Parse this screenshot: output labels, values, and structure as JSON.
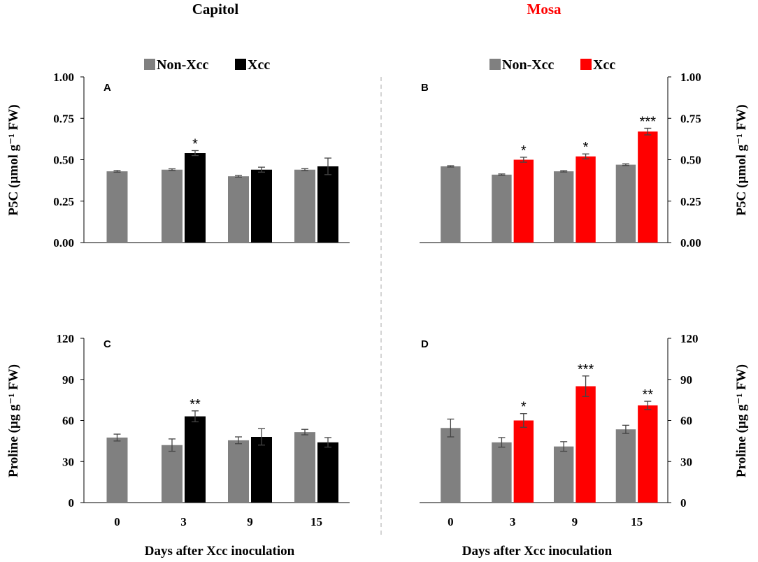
{
  "colors": {
    "non_xcc": "#808080",
    "capitol_xcc": "#000000",
    "mosa_xcc": "#ff0000",
    "mosa_title": "#ff0000",
    "capitol_title": "#000000",
    "axis": "#000000",
    "error_bar": "#444444",
    "divider": "#aaaaaa"
  },
  "chart_data": [
    {
      "id": "A",
      "type": "bar",
      "panel_label": "A",
      "title": "Capitol",
      "ylabel": "P5C (µmol g⁻¹ FW)",
      "xlabel": "",
      "ylim": [
        0,
        1.0
      ],
      "yticks": [
        "0.00",
        "0.25",
        "0.50",
        "0.75",
        "1.00"
      ],
      "ytick_values": [
        0,
        0.25,
        0.5,
        0.75,
        1.0
      ],
      "categories": [
        "0",
        "3",
        "9",
        "15"
      ],
      "legend": [
        "Non-Xcc",
        "Xcc"
      ],
      "series": [
        {
          "name": "Non-Xcc",
          "values": [
            0.43,
            0.44,
            0.4,
            0.44
          ],
          "errors": [
            0.005,
            0.005,
            0.005,
            0.006
          ]
        },
        {
          "name": "Xcc",
          "values": [
            null,
            0.54,
            0.44,
            0.46
          ],
          "errors": [
            null,
            0.015,
            0.015,
            0.05
          ]
        }
      ],
      "significance": [
        "",
        "*",
        "",
        ""
      ]
    },
    {
      "id": "B",
      "type": "bar",
      "panel_label": "B",
      "title": "Mosa",
      "ylabel": "P5C (µmol g⁻¹ FW)",
      "xlabel": "",
      "ylim": [
        0,
        1.0
      ],
      "yticks": [
        "0.00",
        "0.25",
        "0.50",
        "0.75",
        "1.00"
      ],
      "ytick_values": [
        0,
        0.25,
        0.5,
        0.75,
        1.0
      ],
      "categories": [
        "0",
        "3",
        "9",
        "15"
      ],
      "legend": [
        "Non-Xcc",
        "Xcc"
      ],
      "series": [
        {
          "name": "Non-Xcc",
          "values": [
            0.46,
            0.41,
            0.43,
            0.47
          ],
          "errors": [
            0.004,
            0.004,
            0.004,
            0.005
          ]
        },
        {
          "name": "Xcc",
          "values": [
            null,
            0.5,
            0.52,
            0.67
          ],
          "errors": [
            null,
            0.015,
            0.015,
            0.02
          ]
        }
      ],
      "significance": [
        "",
        "*",
        "*",
        "***"
      ]
    },
    {
      "id": "C",
      "type": "bar",
      "panel_label": "C",
      "title": "",
      "ylabel": "Proline (µg g⁻¹ FW)",
      "xlabel": "Days after Xcc inoculation",
      "ylim": [
        0,
        120
      ],
      "yticks": [
        "0",
        "30",
        "60",
        "90",
        "120"
      ],
      "ytick_values": [
        0,
        30,
        60,
        90,
        120
      ],
      "categories": [
        "0",
        "3",
        "9",
        "15"
      ],
      "series": [
        {
          "name": "Non-Xcc",
          "values": [
            47.5,
            42,
            45.5,
            51.5
          ],
          "errors": [
            2.5,
            4.5,
            2.5,
            2
          ]
        },
        {
          "name": "Xcc",
          "values": [
            null,
            63,
            48,
            44
          ],
          "errors": [
            null,
            4,
            6,
            3.5
          ]
        }
      ],
      "significance": [
        "",
        "**",
        "",
        ""
      ]
    },
    {
      "id": "D",
      "type": "bar",
      "panel_label": "D",
      "title": "",
      "ylabel": "Proline (µg g⁻¹ FW)",
      "xlabel": "Days after Xcc inoculation",
      "ylim": [
        0,
        120
      ],
      "yticks": [
        "0",
        "30",
        "60",
        "90",
        "120"
      ],
      "ytick_values": [
        0,
        30,
        60,
        90,
        120
      ],
      "categories": [
        "0",
        "3",
        "9",
        "15"
      ],
      "series": [
        {
          "name": "Non-Xcc",
          "values": [
            54.5,
            44,
            41,
            53.5
          ],
          "errors": [
            6.5,
            3.5,
            3.5,
            3
          ]
        },
        {
          "name": "Xcc",
          "values": [
            null,
            60,
            85,
            71
          ],
          "errors": [
            null,
            5,
            7.5,
            3
          ]
        }
      ],
      "significance": [
        "",
        "*",
        "***",
        "**"
      ]
    }
  ]
}
